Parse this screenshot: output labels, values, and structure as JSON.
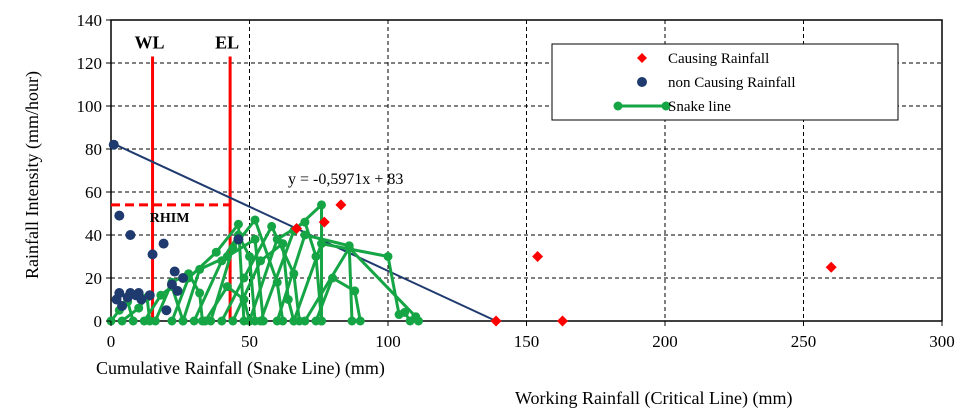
{
  "chart_data": {
    "type": "scatter",
    "title": "",
    "xlabel": "Cumulative Rainfall (Snake Line) (mm)",
    "xlabel2": "Working Rainfall (Critical Line) (mm)",
    "ylabel": "Rainfall Intensity (mm/hour)",
    "xlim": [
      0,
      300
    ],
    "ylim": [
      0,
      140
    ],
    "x_ticks": [
      0,
      50,
      100,
      150,
      200,
      250,
      300
    ],
    "y_ticks": [
      0,
      20,
      40,
      60,
      80,
      100,
      120,
      140
    ],
    "grid": true,
    "legend_position": "top-right",
    "legend": [
      {
        "name": "Causing Rainfall",
        "marker": "diamond",
        "color": "#ff0000"
      },
      {
        "name": "non Causing Rainfall",
        "marker": "circle",
        "color": "#1f3a6e"
      },
      {
        "name": "Snake line",
        "marker": "line-circle",
        "color": "#16a545"
      }
    ],
    "causing_rainfall": [
      {
        "x": 67,
        "y": 43
      },
      {
        "x": 77,
        "y": 46
      },
      {
        "x": 83,
        "y": 54
      },
      {
        "x": 139,
        "y": 0
      },
      {
        "x": 154,
        "y": 30
      },
      {
        "x": 163,
        "y": 0
      },
      {
        "x": 260,
        "y": 25
      }
    ],
    "non_causing_rainfall": [
      {
        "x": 1,
        "y": 82
      },
      {
        "x": 3,
        "y": 49
      },
      {
        "x": 7,
        "y": 40
      },
      {
        "x": 15,
        "y": 31
      },
      {
        "x": 19,
        "y": 36
      },
      {
        "x": 2,
        "y": 10
      },
      {
        "x": 3,
        "y": 13
      },
      {
        "x": 4,
        "y": 7
      },
      {
        "x": 6,
        "y": 11
      },
      {
        "x": 7,
        "y": 13
      },
      {
        "x": 9,
        "y": 12
      },
      {
        "x": 10,
        "y": 13
      },
      {
        "x": 11,
        "y": 10
      },
      {
        "x": 14,
        "y": 12
      },
      {
        "x": 20,
        "y": 5
      },
      {
        "x": 22,
        "y": 17
      },
      {
        "x": 23,
        "y": 23
      },
      {
        "x": 24,
        "y": 14
      },
      {
        "x": 26,
        "y": 20
      },
      {
        "x": 46,
        "y": 38
      }
    ],
    "snake_lines": [
      [
        [
          0,
          0
        ],
        [
          3,
          5
        ],
        [
          6,
          9
        ],
        [
          8,
          0
        ]
      ],
      [
        [
          4,
          0
        ],
        [
          10,
          6
        ],
        [
          13,
          11
        ],
        [
          14,
          0
        ]
      ],
      [
        [
          12,
          0
        ],
        [
          18,
          12
        ],
        [
          22,
          16
        ],
        [
          26,
          0
        ]
      ],
      [
        [
          16,
          0
        ],
        [
          22,
          18
        ],
        [
          28,
          22
        ],
        [
          32,
          13
        ],
        [
          33,
          0
        ]
      ],
      [
        [
          22,
          0
        ],
        [
          28,
          20
        ],
        [
          38,
          32
        ],
        [
          46,
          45
        ],
        [
          48,
          0
        ]
      ],
      [
        [
          26,
          0
        ],
        [
          32,
          24
        ],
        [
          42,
          30
        ],
        [
          52,
          38
        ],
        [
          55,
          0
        ]
      ],
      [
        [
          30,
          0
        ],
        [
          40,
          28
        ],
        [
          46,
          40
        ],
        [
          50,
          30
        ],
        [
          52,
          0
        ]
      ],
      [
        [
          36,
          0
        ],
        [
          44,
          34
        ],
        [
          52,
          47
        ],
        [
          60,
          18
        ],
        [
          62,
          0
        ]
      ],
      [
        [
          40,
          0
        ],
        [
          48,
          20
        ],
        [
          58,
          44
        ],
        [
          66,
          22
        ],
        [
          68,
          0
        ]
      ],
      [
        [
          44,
          0
        ],
        [
          54,
          28
        ],
        [
          62,
          36
        ],
        [
          64,
          10
        ],
        [
          66,
          0
        ]
      ],
      [
        [
          50,
          0
        ],
        [
          60,
          38
        ],
        [
          70,
          46
        ],
        [
          74,
          30
        ],
        [
          76,
          0
        ]
      ],
      [
        [
          54,
          0
        ],
        [
          66,
          42
        ],
        [
          76,
          54
        ],
        [
          76,
          0
        ]
      ],
      [
        [
          60,
          0
        ],
        [
          70,
          40
        ],
        [
          86,
          35
        ],
        [
          87,
          0
        ]
      ],
      [
        [
          66,
          0
        ],
        [
          76,
          36
        ],
        [
          100,
          30
        ],
        [
          104,
          3
        ],
        [
          106,
          4
        ],
        [
          108,
          0
        ]
      ],
      [
        [
          70,
          0
        ],
        [
          86,
          34
        ],
        [
          110,
          2
        ],
        [
          111,
          0
        ]
      ],
      [
        [
          74,
          0
        ],
        [
          80,
          20
        ],
        [
          88,
          14
        ],
        [
          90,
          0
        ]
      ],
      [
        [
          34,
          0
        ],
        [
          42,
          16
        ],
        [
          48,
          10
        ],
        [
          50,
          0
        ]
      ]
    ],
    "threshold_lines": [
      {
        "label": "WL",
        "x": 15,
        "y_top": 123,
        "color": "#ff0000"
      },
      {
        "label": "EL",
        "x": 43,
        "y_top": 123,
        "color": "#ff0000"
      }
    ],
    "rhim": {
      "label": "RHIM",
      "y": 54,
      "x_end": 43,
      "color": "#ff0000"
    },
    "critical_line": {
      "intercept": 83,
      "slope": -0.5971,
      "x_end": 139,
      "color": "#1f3a6e"
    },
    "equation_label": "y = -0,5971x + 83"
  }
}
